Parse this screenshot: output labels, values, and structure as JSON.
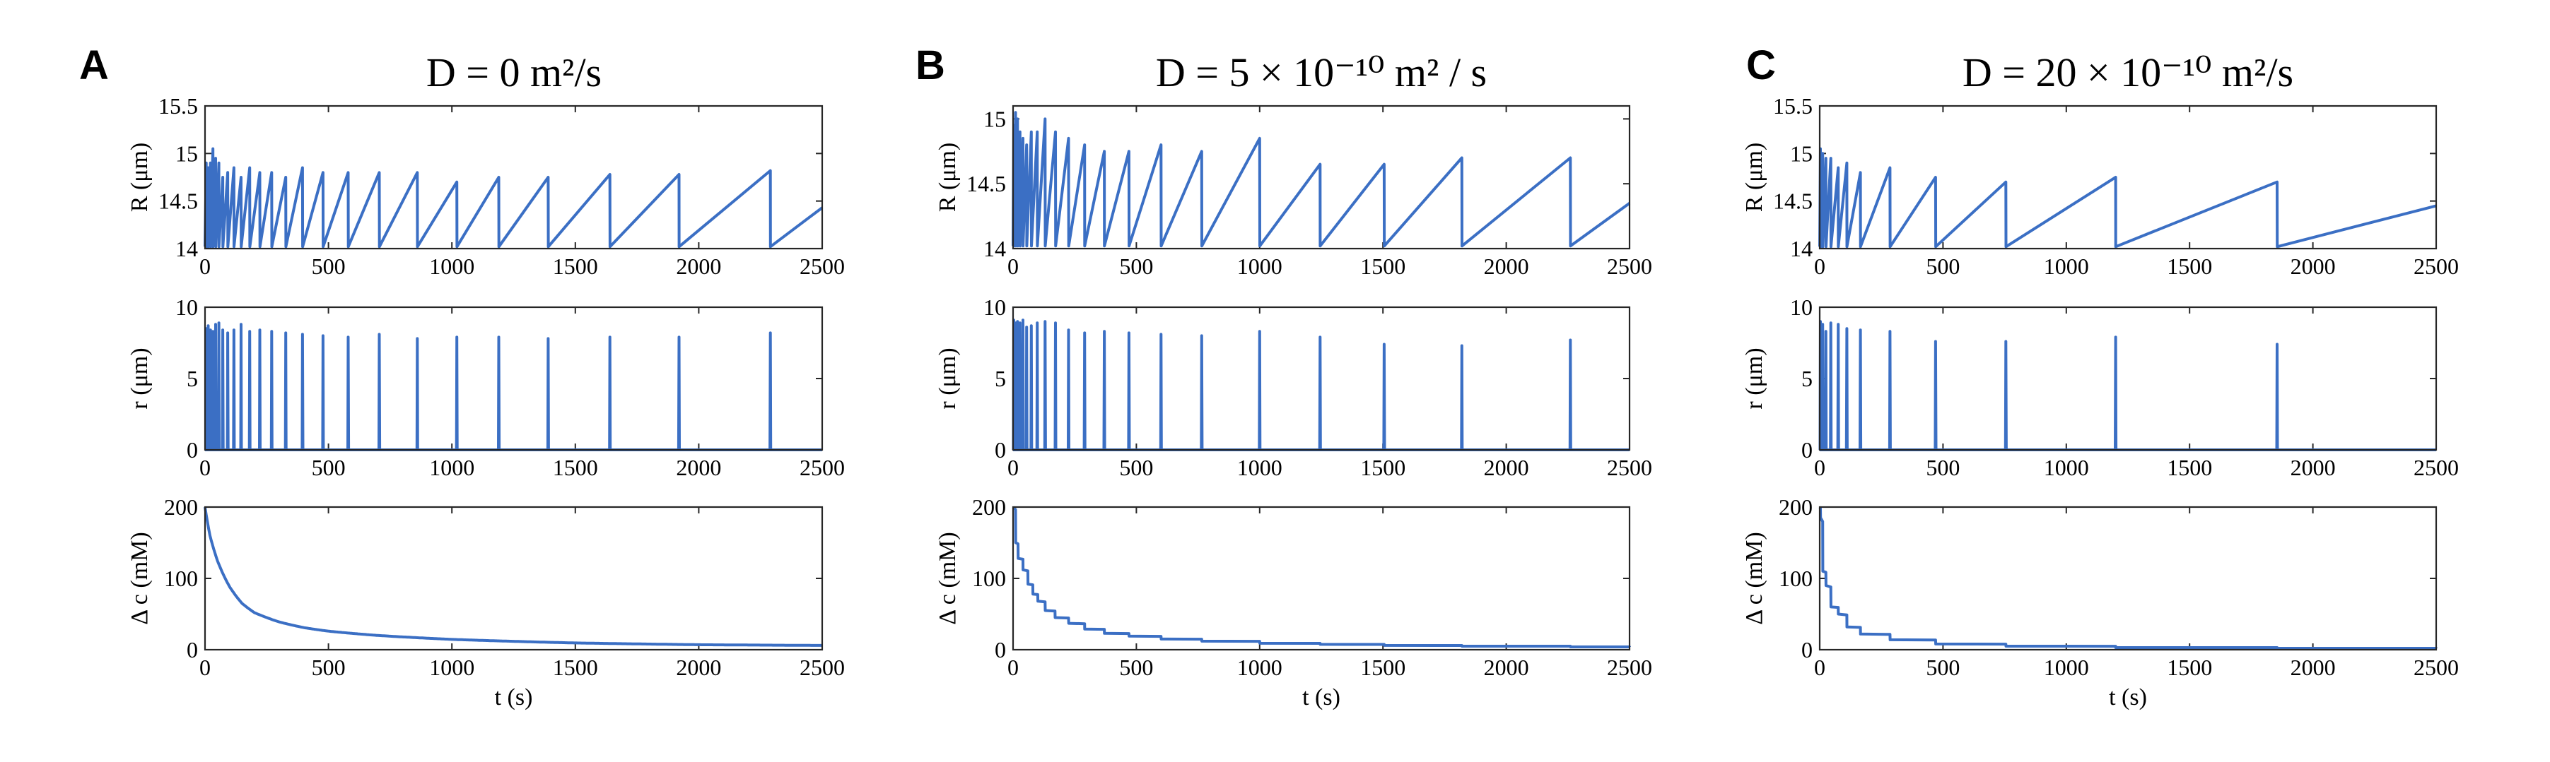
{
  "colors": {
    "line": "#3b6fc4",
    "axis": "#262626"
  },
  "panels": [
    {
      "label": "A",
      "title": "D = 0 m²/s"
    },
    {
      "label": "B",
      "title": "D = 5 × 10⁻¹⁰ m² / s"
    },
    {
      "label": "C",
      "title": "D = 20 × 10⁻¹⁰ m²/s"
    }
  ],
  "chart_data": [
    {
      "panel": "A",
      "row": "R",
      "type": "line",
      "title": "D = 0 m²/s",
      "xlabel": "",
      "ylabel": "R (μm)",
      "xlim": [
        0,
        2500
      ],
      "ylim": [
        14,
        15.5
      ],
      "xticks": [
        0,
        500,
        1000,
        1500,
        2000,
        2500
      ],
      "yticks": [
        14,
        14.5,
        15,
        15.5
      ],
      "ytick_labels": [
        "14",
        "14.5",
        "15",
        "15.5"
      ],
      "shape": "sawtooth",
      "base": 14.02,
      "burst_times": [
        5,
        13,
        22,
        32,
        43,
        56,
        72,
        92,
        117,
        146,
        181,
        222,
        270,
        327,
        395,
        478,
        580,
        706,
        860,
        1020,
        1190,
        1390,
        1640,
        1920,
        2290
      ],
      "peaks": [
        14.9,
        14.85,
        14.9,
        15.05,
        14.95,
        14.9,
        14.75,
        14.8,
        14.85,
        14.75,
        14.85,
        14.8,
        14.8,
        14.75,
        14.85,
        14.8,
        14.8,
        14.8,
        14.8,
        14.7,
        14.75,
        14.75,
        14.78,
        14.78,
        14.82
      ],
      "end_value": 14.43
    },
    {
      "panel": "A",
      "row": "r",
      "type": "line",
      "xlabel": "",
      "ylabel": "r (μm)",
      "xlim": [
        0,
        2500
      ],
      "ylim": [
        0,
        10
      ],
      "xticks": [
        0,
        500,
        1000,
        1500,
        2000,
        2500
      ],
      "yticks": [
        0,
        5,
        10
      ],
      "ytick_labels": [
        "0",
        "5",
        "10"
      ],
      "shape": "spikes",
      "spike_times": [
        5,
        13,
        22,
        32,
        43,
        56,
        72,
        92,
        117,
        146,
        181,
        222,
        270,
        327,
        395,
        478,
        580,
        706,
        860,
        1020,
        1190,
        1390,
        1640,
        1920,
        2290
      ],
      "spike_heights": [
        8.5,
        8.7,
        8.4,
        8.3,
        8.8,
        8.9,
        8.4,
        8.2,
        8.4,
        8.8,
        8.3,
        8.4,
        8.3,
        8.2,
        8.1,
        8.0,
        7.9,
        8.1,
        7.8,
        7.9,
        7.9,
        7.8,
        7.9,
        7.9,
        8.2
      ]
    },
    {
      "panel": "A",
      "row": "dc",
      "type": "line",
      "xlabel": "t (s)",
      "ylabel": "Δ c (mM)",
      "xlim": [
        0,
        2500
      ],
      "ylim": [
        0,
        200
      ],
      "xticks": [
        0,
        500,
        1000,
        1500,
        2000,
        2500
      ],
      "yticks": [
        0,
        100,
        200
      ],
      "ytick_labels": [
        "0",
        "100",
        "200"
      ],
      "shape": "smooth_decay",
      "x": [
        0,
        20,
        50,
        100,
        150,
        200,
        300,
        400,
        500,
        700,
        1000,
        1500,
        2000,
        2500
      ],
      "y": [
        200,
        160,
        125,
        88,
        65,
        52,
        39,
        31,
        26,
        20,
        14.5,
        9.5,
        7,
        6
      ]
    },
    {
      "panel": "B",
      "row": "R",
      "type": "line",
      "title": "D = 5 × 10⁻¹⁰ m² / s",
      "xlabel": "",
      "ylabel": "R (μm)",
      "xlim": [
        0,
        2500
      ],
      "ylim": [
        14,
        15.1
      ],
      "xticks": [
        0,
        500,
        1000,
        1500,
        2000,
        2500
      ],
      "yticks": [
        14,
        14.5,
        15
      ],
      "ytick_labels": [
        "14",
        "14.5",
        "15"
      ],
      "shape": "sawtooth",
      "base": 14.02,
      "burst_times": [
        3,
        10,
        18,
        28,
        40,
        55,
        74,
        98,
        130,
        172,
        225,
        290,
        370,
        470,
        600,
        765,
        1000,
        1245,
        1505,
        1820,
        2260
      ],
      "peaks": [
        14.95,
        15.05,
        15.0,
        14.9,
        14.85,
        14.8,
        14.9,
        14.9,
        15.0,
        14.9,
        14.85,
        14.8,
        14.75,
        14.75,
        14.8,
        14.75,
        14.85,
        14.65,
        14.65,
        14.7,
        14.7
      ],
      "end_value": 14.35
    },
    {
      "panel": "B",
      "row": "r",
      "type": "line",
      "xlabel": "",
      "ylabel": "r (μm)",
      "xlim": [
        0,
        2500
      ],
      "ylim": [
        0,
        10
      ],
      "xticks": [
        0,
        500,
        1000,
        1500,
        2000,
        2500
      ],
      "yticks": [
        0,
        5,
        10
      ],
      "ytick_labels": [
        "0",
        "5",
        "10"
      ],
      "shape": "spikes",
      "spike_times": [
        3,
        10,
        18,
        28,
        40,
        55,
        74,
        98,
        130,
        172,
        225,
        290,
        370,
        470,
        600,
        765,
        1000,
        1245,
        1505,
        1820,
        2260
      ],
      "spike_heights": [
        9.1,
        8.9,
        9.0,
        8.9,
        9.1,
        8.6,
        8.7,
        8.9,
        9.0,
        8.9,
        8.4,
        8.2,
        8.3,
        8.2,
        8.1,
        8.0,
        8.3,
        7.9,
        7.4,
        7.3,
        7.7
      ]
    },
    {
      "panel": "B",
      "row": "dc",
      "type": "line",
      "xlabel": "t (s)",
      "ylabel": "Δ c (mM)",
      "xlim": [
        0,
        2500
      ],
      "ylim": [
        0,
        200
      ],
      "xticks": [
        0,
        500,
        1000,
        1500,
        2000,
        2500
      ],
      "yticks": [
        0,
        100,
        200
      ],
      "ytick_labels": [
        "0",
        "100",
        "200"
      ],
      "shape": "stepped_decay",
      "x": [
        0,
        10,
        20,
        40,
        60,
        80,
        100,
        130,
        170,
        225,
        290,
        370,
        470,
        600,
        765,
        1000,
        1245,
        1505,
        1820,
        2260,
        2500
      ],
      "y": [
        200,
        150,
        128,
        112,
        92,
        78,
        68,
        55,
        45,
        37,
        29,
        23,
        19,
        15,
        12,
        9,
        7.5,
        6,
        5,
        4,
        3.5
      ]
    },
    {
      "panel": "C",
      "row": "R",
      "type": "line",
      "title": "D = 20 × 10⁻¹⁰ m²/s",
      "xlabel": "",
      "ylabel": "R (μm)",
      "xlim": [
        0,
        2500
      ],
      "ylim": [
        14,
        15.5
      ],
      "xticks": [
        0,
        500,
        1000,
        1500,
        2000,
        2500
      ],
      "yticks": [
        14,
        14.5,
        15,
        15.5
      ],
      "ytick_labels": [
        "14",
        "14.5",
        "15",
        "15.5"
      ],
      "shape": "sawtooth",
      "base": 14.02,
      "burst_times": [
        3,
        12,
        25,
        45,
        75,
        110,
        165,
        285,
        470,
        755,
        1200,
        1855
      ],
      "peaks": [
        15.05,
        15.0,
        14.95,
        14.95,
        14.85,
        14.9,
        14.8,
        14.85,
        14.75,
        14.7,
        14.75,
        14.7
      ],
      "end_value": 14.45
    },
    {
      "panel": "C",
      "row": "r",
      "type": "line",
      "xlabel": "",
      "ylabel": "r (μm)",
      "xlim": [
        0,
        2500
      ],
      "ylim": [
        0,
        10
      ],
      "xticks": [
        0,
        500,
        1000,
        1500,
        2000,
        2500
      ],
      "yticks": [
        0,
        5,
        10
      ],
      "ytick_labels": [
        "0",
        "5",
        "10"
      ],
      "shape": "spikes",
      "spike_times": [
        3,
        12,
        25,
        45,
        75,
        110,
        165,
        285,
        470,
        755,
        1200,
        1855
      ],
      "spike_heights": [
        9.0,
        8.8,
        8.3,
        8.9,
        8.8,
        8.5,
        8.4,
        8.3,
        7.6,
        7.6,
        7.9,
        7.4
      ]
    },
    {
      "panel": "C",
      "row": "dc",
      "type": "line",
      "xlabel": "t (s)",
      "ylabel": "Δ c (mM)",
      "xlim": [
        0,
        2500
      ],
      "ylim": [
        0,
        200
      ],
      "xticks": [
        0,
        500,
        1000,
        1500,
        2000,
        2500
      ],
      "yticks": [
        0,
        100,
        200
      ],
      "ytick_labels": [
        "0",
        "100",
        "200"
      ],
      "shape": "stepped_decay",
      "x": [
        0,
        3,
        12,
        25,
        45,
        75,
        110,
        165,
        285,
        470,
        755,
        1200,
        1855,
        2500
      ],
      "y": [
        200,
        185,
        110,
        90,
        60,
        50,
        32,
        22,
        14,
        8,
        5,
        3,
        2,
        1.5
      ]
    }
  ]
}
